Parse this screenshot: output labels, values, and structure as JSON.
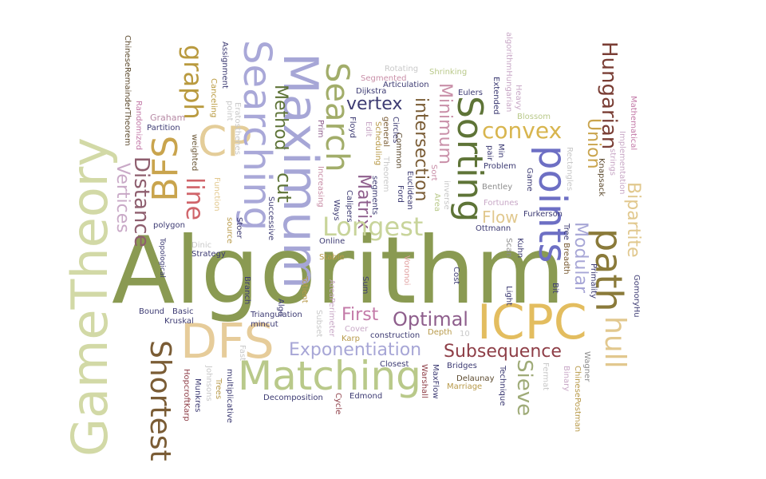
{
  "words": {
    "algorithm": "Algorithm",
    "gametheory": "GameTheory",
    "dfs": "DFS",
    "icpc": "ICPC",
    "matching": "Matching",
    "cp": "CP",
    "bfs": "BFS",
    "maximum": "Maximum",
    "searching": "Searching",
    "search": "Search",
    "sorting": "Sorting",
    "points": "points",
    "path": "path",
    "hull": "hull",
    "shortest": "Shortest",
    "longest": "Longest",
    "convex": "convex",
    "exponentiation": "Exponentiation",
    "subsequence": "Subsequence",
    "optimal": "Optimal",
    "first": "First",
    "hungarian": "Hungarian",
    "graph": "graph",
    "line": "line",
    "distance": "Distance",
    "vertices": "Vertices",
    "matrix": "Matrix",
    "intersection": "intersection",
    "minimum": "Minimum",
    "vertex": "vertex",
    "method": "Method",
    "cut": "cut",
    "union": "Union",
    "bipartite": "Bipartite",
    "flow": "Flow",
    "modular": "Modular",
    "sieve": "Sieve",
    "chinese_remainder": "ChineseRemainderTheorem",
    "randomized": "Randomized",
    "chinese_remainder2": "ChineseRemainder",
    "graham": "Graham",
    "partition": "Partition",
    "weighted": "weighted",
    "polygon": "polygon",
    "topological": "Topological",
    "assignment": "Assignment",
    "function": "Function",
    "canceling": "Canceling",
    "point": "point",
    "eratosthenes": "Eratosthenes",
    "rotating": "Rotating",
    "segmented": "Segmented",
    "shrinking": "Shrinking",
    "dijkstra": "Dijkstra",
    "prim": "Prim",
    "floyd": "Floyd",
    "increasing": "Increasing",
    "euclidean": "Euclidean",
    "common": "Common",
    "eulers": "Eulers",
    "extended": "Extended",
    "algorithm_hungarian": "algorithmHungarian",
    "heavy": "Heavy",
    "mathematical": "Mathematical",
    "implementation": "Implementation",
    "blossom": "Blossom",
    "knapsack": "Knapsack",
    "problem": "Problem",
    "game": "Game",
    "bentley": "Bentley",
    "fortunes": "Fortunes",
    "ottmann": "Ottmann",
    "furkerson": "Furkerson",
    "scan": "Scan",
    "kuhn": "Kuhn",
    "primality": "Primality",
    "gomoryhu": "GomoryHu",
    "light": "Light",
    "cost": "Cost",
    "sum": "Sum",
    "voronoi": "Voronoi",
    "online": "Online",
    "stable": "Stable",
    "strategy": "Strategy",
    "dinic": "Dinic",
    "kruskal": "Kruskal",
    "basic": "Basic",
    "bound": "Bound",
    "branch": "Branch",
    "successive": "Successive",
    "algo": "Algo",
    "totient": "Totient",
    "triangulation": "Triangulation",
    "areaperimeter": "AreaPerimeter",
    "subset": "Subset",
    "mincut": "mincut",
    "cover": "Cover",
    "karp": "Karp",
    "construction": "construction",
    "depth": "Depth",
    "closest": "Closest",
    "bridges": "Bridges",
    "delaunay": "Delaunay",
    "marriage": "Marriage",
    "technique": "Technique",
    "fermat": "Fermat",
    "binary": "Binary",
    "chinesepostman": "ChinesePostman",
    "wagner": "Wagner",
    "hopcroftkarp": "HopcroftKarp",
    "munkres": "Munkres",
    "johnsons": "Johnsons",
    "trees": "Trees",
    "multiplicative": "multiplicative",
    "decomposition": "Decomposition",
    "edmond": "Edmond",
    "cycle": "Cycle",
    "warshall": "Warshall",
    "maxflow": "MaxFlow",
    "articulation": "Articulation",
    "ways": "Ways",
    "calipers": "Calipers",
    "ford": "Ford",
    "area": "Area",
    "inverse": "inverse",
    "sort": "Sort",
    "edit": "Edit",
    "scheduling": "Scheduling",
    "general": "general",
    "theorem": "Theorem",
    "circles": "Circles",
    "segments": "segments",
    "pair": "pair",
    "min": "Min",
    "rectangles": "Rectangles",
    "strings": "strings",
    "tree": "Tree",
    "breadth": "Breadth",
    "bit": "Bit",
    "source": "source",
    "stoer": "Stoer",
    "fast": "Fast",
    "one": "10"
  },
  "colors": {
    "olive": "#8a9a52",
    "sage": "#b9c98a",
    "pale_green": "#c8d49a",
    "tan": "#e2c88e",
    "gold": "#e1bc5c",
    "mustard": "#cda94a",
    "lavender": "#a7a6d6",
    "periwinkle": "#8d8dd0",
    "indigo": "#5b5fb8",
    "navy": "#3d3b73",
    "dark_green": "#5e7437",
    "brown": "#7a5c35",
    "maroon": "#8e3e47",
    "mauve": "#b78aa5",
    "purple_dusty": "#8e5e8c",
    "red": "#d0646a",
    "lilac": "#c9a9c7",
    "grey": "#8e8e8e"
  }
}
